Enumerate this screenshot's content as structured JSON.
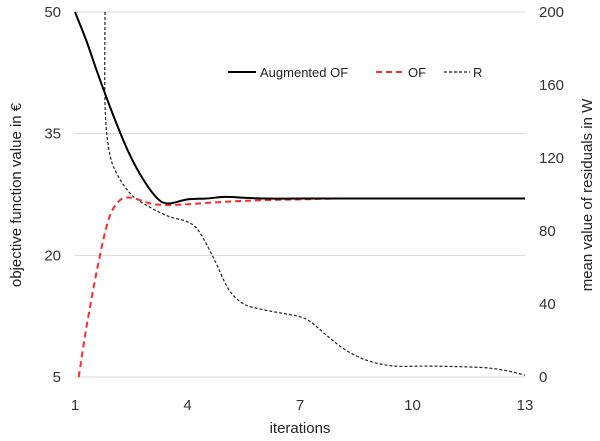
{
  "chart_data": {
    "type": "line",
    "xlabel": "iterations",
    "ylabel_left": "objective function value in €",
    "ylabel_right": "mean value of residuals in W",
    "xlim": [
      1,
      13
    ],
    "ylim_left": [
      5,
      50
    ],
    "ylim_right": [
      0,
      200
    ],
    "x_ticks": [
      "1",
      "4",
      "7",
      "10",
      "13"
    ],
    "y_left_ticks": [
      "5",
      "20",
      "35",
      "50"
    ],
    "y_right_ticks": [
      "0",
      "40",
      "80",
      "120",
      "160",
      "200"
    ],
    "grid": "horizontal",
    "legend_position": "top-right",
    "series": [
      {
        "name": "Augmented OF",
        "axis": "left",
        "color": "#000000",
        "style": "solid",
        "x": [
          1.0,
          1.3,
          1.6,
          2.0,
          2.4,
          2.8,
          3.2,
          3.5,
          4.0,
          4.5,
          5.0,
          5.5,
          6.0,
          7.0,
          8.0,
          9.0,
          10.0,
          11.0,
          12.0,
          13.0
        ],
        "y": [
          50,
          46.5,
          42.5,
          37.5,
          33.0,
          29.5,
          27.0,
          26.4,
          26.9,
          27.0,
          27.2,
          27.1,
          27.0,
          27.0,
          27.0,
          27.0,
          27.0,
          27.0,
          27.0,
          27.0
        ]
      },
      {
        "name": "OF",
        "axis": "left",
        "color": "#ff2a2a",
        "style": "dashed",
        "x": [
          1.1,
          1.3,
          1.6,
          1.9,
          2.2,
          2.5,
          2.8,
          3.1,
          3.5,
          4.0,
          5.0,
          6.0,
          7.0,
          8.0,
          10.0,
          13.0
        ],
        "y": [
          5,
          11,
          18.5,
          24.5,
          26.8,
          27.1,
          26.7,
          26.3,
          26.2,
          26.3,
          26.6,
          26.8,
          26.9,
          27.0,
          27.0,
          27.0
        ]
      },
      {
        "name": "R",
        "axis": "right",
        "color": "#222222",
        "style": "dashed",
        "x": [
          1.8,
          1.8,
          1.9,
          2.1,
          2.5,
          3.0,
          3.5,
          4.0,
          4.3,
          4.7,
          5.1,
          5.5,
          6.0,
          6.5,
          7.0,
          7.3,
          7.7,
          8.2,
          8.8,
          9.5,
          10.3,
          11.0,
          11.5,
          12.0,
          12.5,
          13.0
        ],
        "y": [
          200,
          150,
          125,
          112,
          100,
          93,
          88,
          85,
          80,
          65,
          48,
          40,
          37,
          35,
          33,
          30,
          23,
          15,
          9,
          6,
          6,
          5.8,
          5.5,
          5,
          3.5,
          1
        ]
      }
    ]
  }
}
